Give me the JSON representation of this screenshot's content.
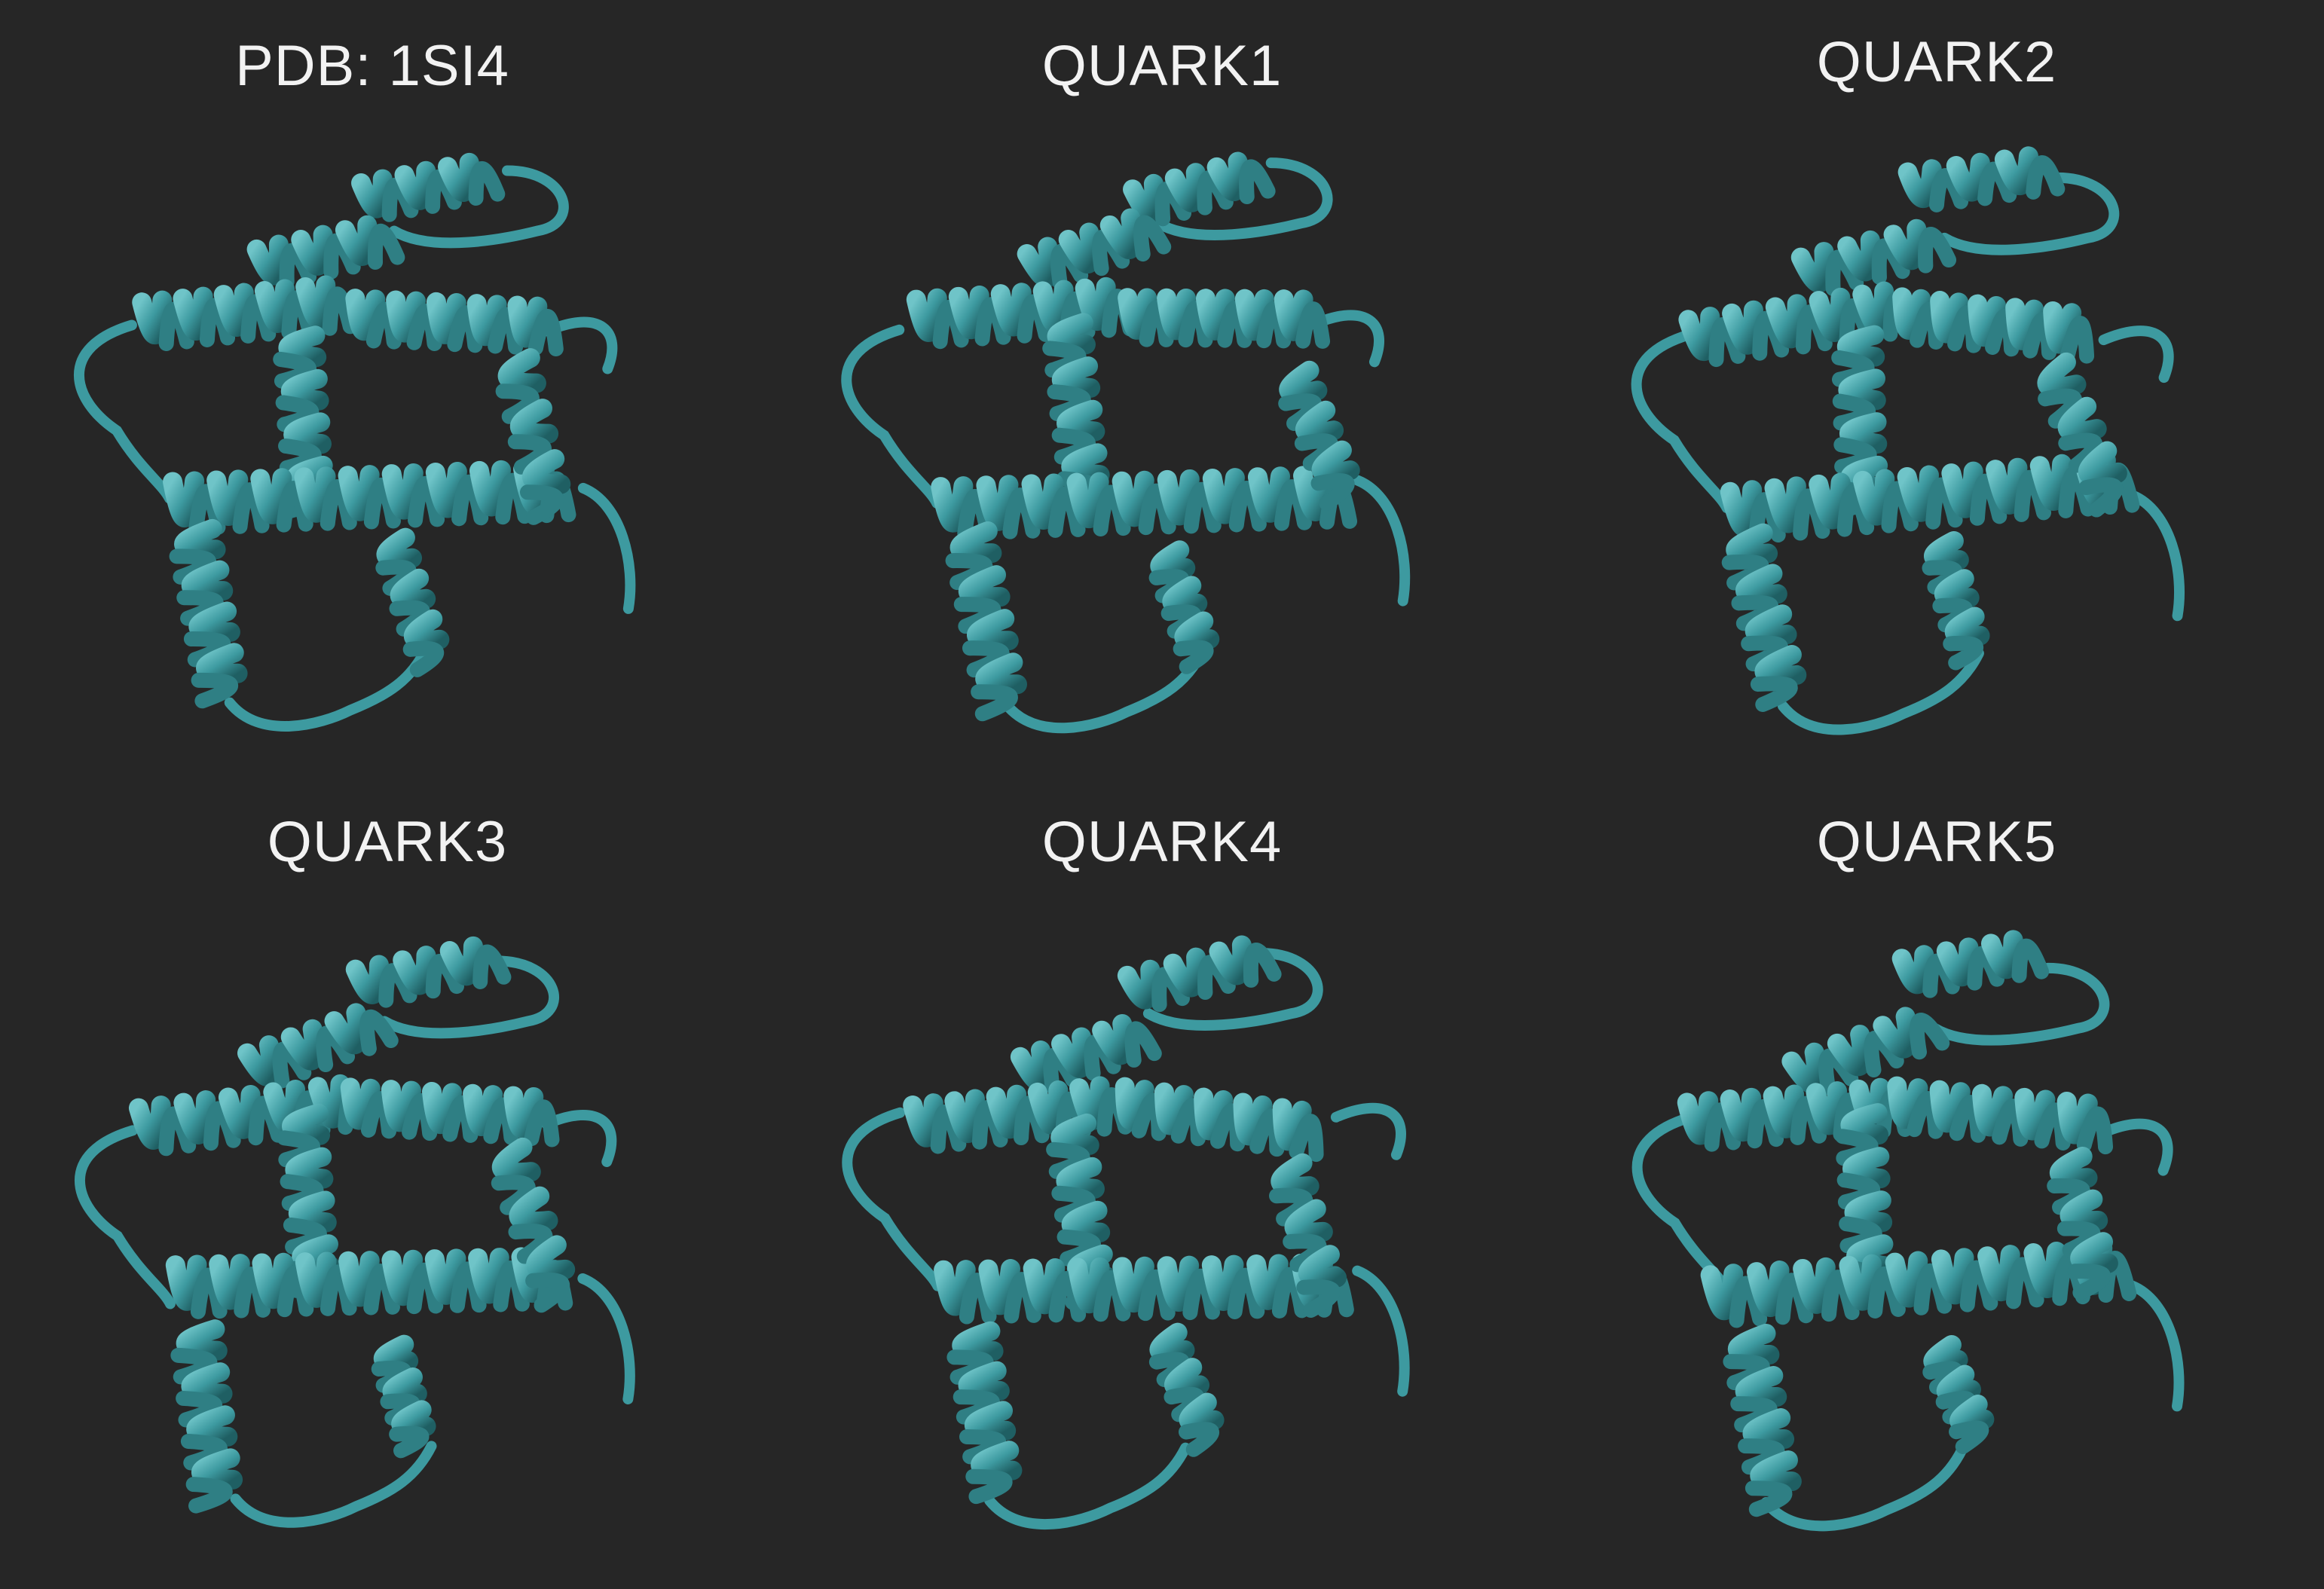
{
  "figure": {
    "background_color": "#262626",
    "ribbon_color": "#3d9aa0",
    "panels": [
      {
        "label": "PDB: 1SI4",
        "icon": "protein-ribbon-structure"
      },
      {
        "label": "QUARK1",
        "icon": "protein-ribbon-structure"
      },
      {
        "label": "QUARK2",
        "icon": "protein-ribbon-structure"
      },
      {
        "label": "QUARK3",
        "icon": "protein-ribbon-structure"
      },
      {
        "label": "QUARK4",
        "icon": "protein-ribbon-structure"
      },
      {
        "label": "QUARK5",
        "icon": "protein-ribbon-structure"
      }
    ]
  }
}
